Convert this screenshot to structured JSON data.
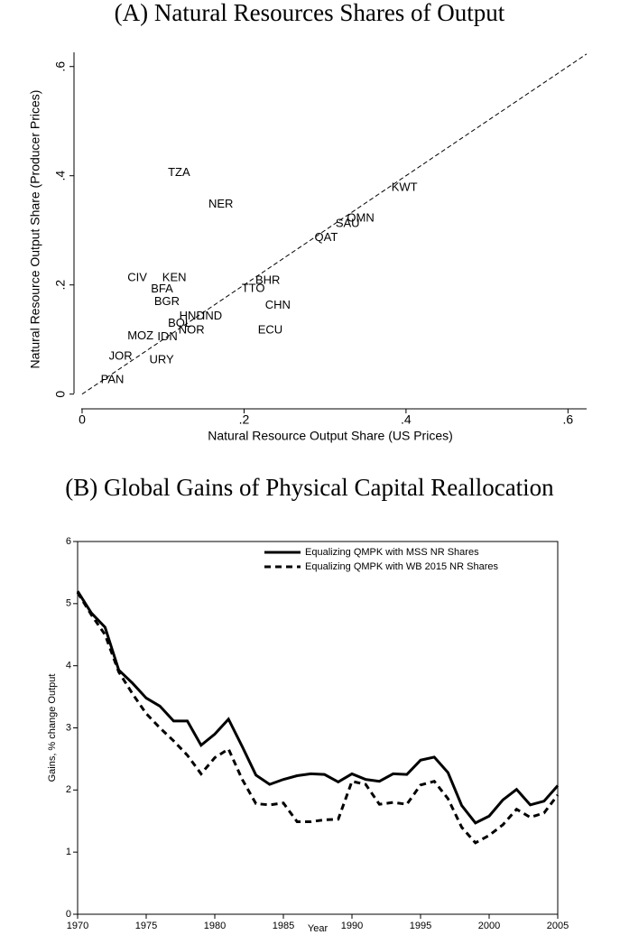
{
  "chart_data": [
    {
      "type": "scatter",
      "title": "(A) Natural Resources Shares of Output",
      "x_label": "Natural Resource Output Share (US Prices)",
      "y_label": "Natural Resource Output Share (Producer Prices)",
      "color": "#1f4e79",
      "diagonal": true,
      "xlim": [
        -0.01,
        0.623
      ],
      "ylim": [
        -0.022,
        0.626
      ],
      "xticks": [
        0,
        {
          "value": 0.2,
          "label": ".2"
        },
        {
          "value": 0.4,
          "label": ".4"
        },
        {
          "value": 0.6,
          "label": ".6"
        }
      ],
      "yticks": [
        0,
        {
          "value": 0.2,
          "label": ".2"
        },
        {
          "value": 0.4,
          "label": ".4"
        },
        {
          "value": 0.6,
          "label": ".6"
        }
      ],
      "points": [
        {
          "label": "TZA",
          "x": 0.106,
          "y": 0.405
        },
        {
          "label": "NER",
          "x": 0.156,
          "y": 0.347
        },
        {
          "label": "KWT",
          "x": 0.382,
          "y": 0.378
        },
        {
          "label": "OMN",
          "x": 0.327,
          "y": 0.322
        },
        {
          "label": "SAU",
          "x": 0.313,
          "y": 0.312
        },
        {
          "label": "QAT",
          "x": 0.287,
          "y": 0.286
        },
        {
          "label": "BHR",
          "x": 0.214,
          "y": 0.208
        },
        {
          "label": "TTO",
          "x": 0.197,
          "y": 0.193
        },
        {
          "label": "CHN",
          "x": 0.226,
          "y": 0.162
        },
        {
          "label": "ECU",
          "x": 0.217,
          "y": 0.117
        },
        {
          "label": "CIV",
          "x": 0.056,
          "y": 0.213
        },
        {
          "label": "KEN",
          "x": 0.099,
          "y": 0.213
        },
        {
          "label": "BFA",
          "x": 0.085,
          "y": 0.192
        },
        {
          "label": "BGR",
          "x": 0.089,
          "y": 0.169
        },
        {
          "label": "HND",
          "x": 0.12,
          "y": 0.142
        },
        {
          "label": "IND",
          "x": 0.148,
          "y": 0.142
        },
        {
          "label": "BOL",
          "x": 0.106,
          "y": 0.129
        },
        {
          "label": "NOR",
          "x": 0.119,
          "y": 0.117
        },
        {
          "label": "IDN",
          "x": 0.093,
          "y": 0.104
        },
        {
          "label": "MOZ",
          "x": 0.056,
          "y": 0.106
        },
        {
          "label": "JOR",
          "x": 0.033,
          "y": 0.069
        },
        {
          "label": "URY",
          "x": 0.083,
          "y": 0.062
        },
        {
          "label": "PAN",
          "x": 0.023,
          "y": 0.026
        }
      ]
    },
    {
      "type": "line",
      "title": "(B) Global Gains of Physical Capital Reallocation",
      "x_label": "Year",
      "y_label": "Gains, % change Output",
      "legend": "top-right",
      "xlim": [
        1970,
        2005
      ],
      "ylim": [
        0,
        6
      ],
      "xticks": [
        1970,
        1975,
        1980,
        1985,
        1990,
        1995,
        2000,
        2005
      ],
      "yticks": [
        0,
        1,
        2,
        3,
        4,
        5,
        6
      ],
      "x": [
        1970,
        1971,
        1972,
        1973,
        1974,
        1975,
        1976,
        1977,
        1978,
        1979,
        1980,
        1981,
        1982,
        1983,
        1984,
        1985,
        1986,
        1987,
        1988,
        1989,
        1990,
        1991,
        1992,
        1993,
        1994,
        1995,
        1996,
        1997,
        1998,
        1999,
        2000,
        2001,
        2002,
        2003,
        2004,
        2005
      ],
      "series": [
        {
          "name": "Equalizing QMPK with MSS NR Shares",
          "color": "#000000",
          "line_style": "solid",
          "values": [
            5.2,
            4.85,
            4.62,
            3.93,
            3.72,
            3.48,
            3.35,
            3.11,
            3.11,
            2.72,
            2.9,
            3.14,
            2.7,
            2.24,
            2.09,
            2.17,
            2.23,
            2.26,
            2.25,
            2.13,
            2.26,
            2.17,
            2.14,
            2.26,
            2.25,
            2.48,
            2.53,
            2.28,
            1.75,
            1.47,
            1.58,
            1.84,
            2.01,
            1.76,
            1.82,
            2.07
          ]
        },
        {
          "name": "Equalizing QMPK with WB 2015 NR Shares",
          "color": "#000000",
          "line_style": "dashed",
          "values": [
            5.18,
            4.82,
            4.5,
            3.9,
            3.55,
            3.23,
            3.0,
            2.79,
            2.56,
            2.26,
            2.52,
            2.66,
            2.17,
            1.78,
            1.76,
            1.79,
            1.49,
            1.49,
            1.52,
            1.53,
            2.14,
            2.09,
            1.77,
            1.8,
            1.77,
            2.08,
            2.14,
            1.86,
            1.4,
            1.15,
            1.27,
            1.44,
            1.69,
            1.56,
            1.63,
            1.92
          ]
        }
      ]
    }
  ]
}
